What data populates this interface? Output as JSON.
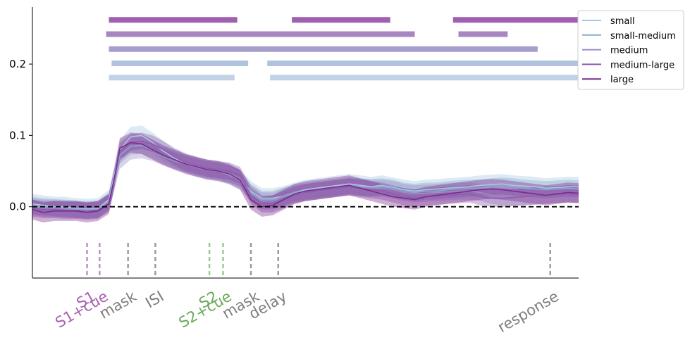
{
  "chart_data": {
    "type": "line",
    "title": "",
    "xlabel": "",
    "ylabel": "",
    "ylim": [
      -0.1,
      0.28
    ],
    "xlim": [
      0,
      100
    ],
    "yticks": [
      {
        "value": 0.0,
        "label": "0.0"
      },
      {
        "value": 0.1,
        "label": "0.1"
      },
      {
        "value": 0.2,
        "label": "0.2"
      }
    ],
    "zero_line": 0.0,
    "grid": false,
    "legend_position": "top-right",
    "x": [
      0,
      2,
      4,
      6,
      8,
      10,
      12,
      14,
      15,
      16,
      18,
      20,
      22,
      24,
      26,
      28,
      30,
      32,
      34,
      36,
      38,
      40,
      42,
      44,
      46,
      48,
      50,
      52,
      54,
      56,
      58,
      60,
      62,
      64,
      66,
      68,
      70,
      72,
      74,
      76,
      78,
      80,
      82,
      84,
      86,
      88,
      90,
      92,
      94,
      96,
      98,
      100
    ],
    "series": [
      {
        "name": "small",
        "color": "#a6c8e0",
        "band_width": 0.014,
        "values": [
          0.004,
          0.002,
          0.0,
          0.0,
          -0.002,
          -0.003,
          -0.002,
          0.01,
          0.045,
          0.08,
          0.098,
          0.1,
          0.09,
          0.078,
          0.068,
          0.062,
          0.056,
          0.052,
          0.05,
          0.045,
          0.038,
          0.022,
          0.012,
          0.012,
          0.015,
          0.02,
          0.024,
          0.026,
          0.028,
          0.03,
          0.032,
          0.03,
          0.028,
          0.03,
          0.027,
          0.024,
          0.022,
          0.024,
          0.025,
          0.026,
          0.027,
          0.028,
          0.03,
          0.031,
          0.032,
          0.03,
          0.029,
          0.028,
          0.026,
          0.027,
          0.028,
          0.028
        ]
      },
      {
        "name": "small-medium",
        "color": "#8aa9d0",
        "band_width": 0.012,
        "values": [
          0.002,
          0.0,
          -0.001,
          -0.002,
          -0.003,
          -0.004,
          -0.003,
          0.008,
          0.04,
          0.072,
          0.085,
          0.086,
          0.08,
          0.072,
          0.066,
          0.06,
          0.056,
          0.052,
          0.05,
          0.046,
          0.04,
          0.02,
          0.01,
          0.01,
          0.015,
          0.02,
          0.022,
          0.024,
          0.026,
          0.028,
          0.03,
          0.028,
          0.027,
          0.028,
          0.026,
          0.022,
          0.02,
          0.022,
          0.022,
          0.024,
          0.025,
          0.026,
          0.026,
          0.028,
          0.029,
          0.028,
          0.026,
          0.025,
          0.024,
          0.025,
          0.026,
          0.025
        ]
      },
      {
        "name": "medium",
        "color": "#9a8ec2",
        "band_width": 0.012,
        "values": [
          0.0,
          -0.002,
          -0.002,
          -0.003,
          -0.004,
          -0.005,
          -0.004,
          0.006,
          0.035,
          0.065,
          0.078,
          0.08,
          0.076,
          0.07,
          0.064,
          0.06,
          0.055,
          0.052,
          0.05,
          0.046,
          0.04,
          0.018,
          0.008,
          0.008,
          0.014,
          0.018,
          0.02,
          0.022,
          0.024,
          0.026,
          0.028,
          0.027,
          0.026,
          0.026,
          0.024,
          0.02,
          0.018,
          0.019,
          0.02,
          0.021,
          0.022,
          0.022,
          0.02,
          0.016,
          0.014,
          0.013,
          0.014,
          0.015,
          0.016,
          0.017,
          0.018,
          0.018
        ]
      },
      {
        "name": "medium-large",
        "color": "#8c5cae",
        "band_width": 0.012,
        "values": [
          -0.002,
          -0.004,
          -0.004,
          -0.005,
          -0.005,
          -0.006,
          -0.005,
          0.005,
          0.04,
          0.078,
          0.09,
          0.092,
          0.088,
          0.08,
          0.07,
          0.062,
          0.058,
          0.054,
          0.052,
          0.05,
          0.044,
          0.016,
          0.004,
          0.004,
          0.01,
          0.016,
          0.02,
          0.022,
          0.024,
          0.026,
          0.028,
          0.026,
          0.024,
          0.022,
          0.018,
          0.014,
          0.012,
          0.014,
          0.015,
          0.016,
          0.017,
          0.018,
          0.014,
          0.012,
          0.012,
          0.013,
          0.014,
          0.015,
          0.016,
          0.017,
          0.018,
          0.017
        ]
      },
      {
        "name": "large",
        "color": "#7d2a8e",
        "band_width": 0.014,
        "values": [
          -0.004,
          -0.008,
          -0.006,
          -0.006,
          -0.006,
          -0.008,
          -0.006,
          0.004,
          0.04,
          0.082,
          0.09,
          0.088,
          0.08,
          0.072,
          0.066,
          0.06,
          0.056,
          0.052,
          0.05,
          0.046,
          0.038,
          0.01,
          0.0,
          0.002,
          0.01,
          0.018,
          0.022,
          0.024,
          0.026,
          0.028,
          0.03,
          0.026,
          0.022,
          0.018,
          0.014,
          0.012,
          0.01,
          0.014,
          0.016,
          0.018,
          0.02,
          0.022,
          0.024,
          0.025,
          0.024,
          0.022,
          0.02,
          0.018,
          0.016,
          0.018,
          0.02,
          0.019
        ]
      }
    ],
    "significance_bars": [
      {
        "series": "large",
        "color": "#a05fb0",
        "y": 0.262,
        "segments": [
          [
            14.0,
            37.5
          ],
          [
            47.5,
            65.5
          ],
          [
            77.0,
            100
          ]
        ]
      },
      {
        "series": "medium-large",
        "color": "#a886c0",
        "y": 0.242,
        "segments": [
          [
            13.5,
            70.0
          ],
          [
            78.0,
            87.0
          ]
        ]
      },
      {
        "series": "medium",
        "color": "#a79fcb",
        "y": 0.221,
        "segments": [
          [
            14.0,
            92.5
          ]
        ]
      },
      {
        "series": "small-medium",
        "color": "#b0c2dd",
        "y": 0.201,
        "segments": [
          [
            14.5,
            39.5
          ],
          [
            43.0,
            100
          ]
        ]
      },
      {
        "series": "small",
        "color": "#c2d2e6",
        "y": 0.181,
        "segments": [
          [
            14.0,
            37.0
          ],
          [
            43.5,
            100
          ]
        ]
      }
    ],
    "events": [
      {
        "x": 10.0,
        "color": "#c089c8",
        "label": "S1",
        "label_color": "#a960b0"
      },
      {
        "x": 12.3,
        "color": "#c089c8",
        "label": "S1+cue",
        "label_color": "#a960b0"
      },
      {
        "x": 17.5,
        "color": "#999999",
        "label": "mask",
        "label_color": "#7f7f7f"
      },
      {
        "x": 22.5,
        "color": "#999999",
        "label": "ISI",
        "label_color": "#7f7f7f"
      },
      {
        "x": 32.4,
        "color": "#98c98a",
        "label": "S2",
        "label_color": "#6aa858"
      },
      {
        "x": 34.9,
        "color": "#98c98a",
        "label": "S2+cue",
        "label_color": "#6aa858"
      },
      {
        "x": 40.0,
        "color": "#999999",
        "label": "mask",
        "label_color": "#7f7f7f"
      },
      {
        "x": 45.0,
        "color": "#999999",
        "label": "delay",
        "label_color": "#7f7f7f"
      },
      {
        "x": 94.8,
        "color": "#999999",
        "label": "response",
        "label_color": "#7f7f7f"
      }
    ]
  }
}
